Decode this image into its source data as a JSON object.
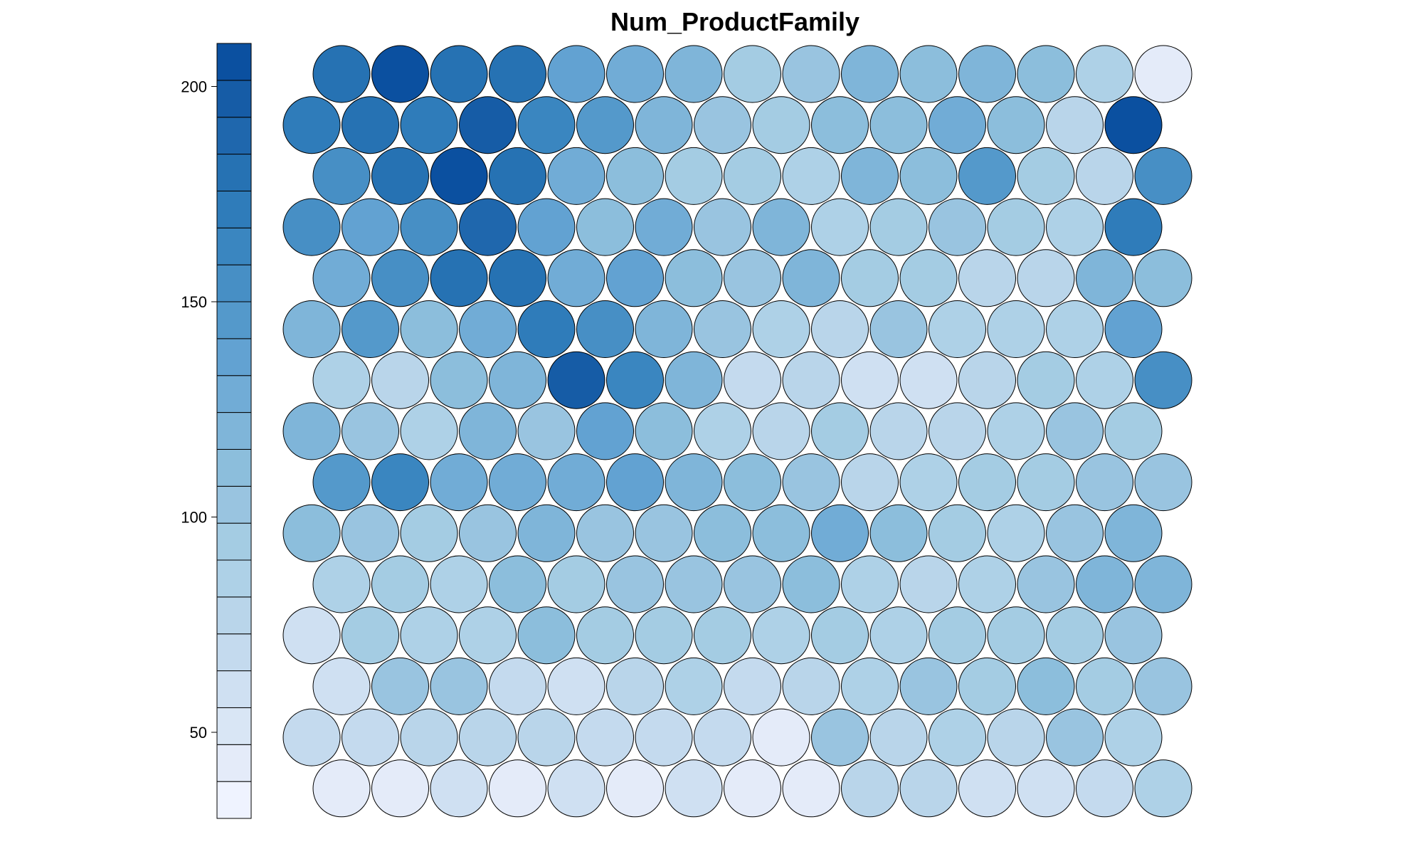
{
  "chart_data": {
    "type": "heatmap",
    "title": "Num_ProductFamily",
    "grid": {
      "topology": "hexagonal",
      "rows": 15,
      "cols": 15,
      "row_order": "top-to-bottom"
    },
    "colorbar": {
      "min": 30,
      "max": 210,
      "ticks": [
        50,
        100,
        150,
        200
      ],
      "tick_labels": [
        "50",
        "100",
        "150",
        "200"
      ],
      "colors": [
        "#eff3ff",
        "#e4ebf9",
        "#d9e6f5",
        "#cfe0f2",
        "#c4daee",
        "#b9d5ea",
        "#aed1e7",
        "#a4cce3",
        "#99c4e0",
        "#8cbedc",
        "#7fb5d9",
        "#71acd6",
        "#62a2d2",
        "#5499cb",
        "#478fc5",
        "#3a86c0",
        "#2f7cba",
        "#2672b3",
        "#1f67ad",
        "#165ca6",
        "#0b50a0"
      ]
    },
    "values": [
      [
        183,
        206,
        180,
        183,
        135,
        129,
        121,
        92,
        103,
        121,
        110,
        116,
        113,
        86,
        39
      ],
      [
        173,
        176,
        174,
        193,
        160,
        142,
        119,
        100,
        92,
        113,
        108,
        128,
        109,
        80,
        208
      ],
      [
        153,
        184,
        207,
        181,
        130,
        110,
        95,
        93,
        89,
        120,
        113,
        143,
        95,
        79,
        150
      ],
      [
        152,
        138,
        151,
        188,
        139,
        113,
        125,
        102,
        124,
        87,
        95,
        104,
        95,
        86,
        168
      ],
      [
        132,
        152,
        177,
        176,
        132,
        137,
        111,
        100,
        119,
        95,
        91,
        78,
        75,
        124,
        108
      ],
      [
        121,
        142,
        111,
        131,
        168,
        150,
        120,
        100,
        85,
        77,
        101,
        87,
        87,
        88,
        140
      ],
      [
        86,
        78,
        110,
        120,
        194,
        160,
        120,
        65,
        74,
        64,
        63,
        79,
        96,
        86,
        152
      ],
      [
        122,
        107,
        85,
        120,
        101,
        140,
        113,
        86,
        80,
        93,
        80,
        74,
        82,
        101,
        94
      ],
      [
        142,
        164,
        126,
        126,
        127,
        136,
        119,
        113,
        99,
        77,
        87,
        92,
        98,
        104,
        99
      ],
      [
        109,
        99,
        95,
        106,
        122,
        107,
        101,
        108,
        113,
        131,
        114,
        92,
        87,
        100,
        118
      ],
      [
        87,
        94,
        88,
        108,
        96,
        103,
        100,
        101,
        115,
        89,
        81,
        89,
        102,
        117,
        118
      ],
      [
        60,
        96,
        86,
        85,
        108,
        96,
        94,
        96,
        88,
        92,
        89,
        90,
        97,
        95,
        101
      ],
      [
        64,
        105,
        103,
        65,
        62,
        78,
        83,
        70,
        76,
        82,
        100,
        94,
        110,
        94,
        101
      ],
      [
        67,
        65,
        79,
        80,
        76,
        68,
        69,
        67,
        42,
        103,
        78,
        85,
        80,
        103,
        82
      ],
      [
        41,
        42,
        59,
        47,
        56,
        43,
        60,
        44,
        43,
        79,
        78,
        59,
        60,
        71,
        82
      ]
    ]
  }
}
